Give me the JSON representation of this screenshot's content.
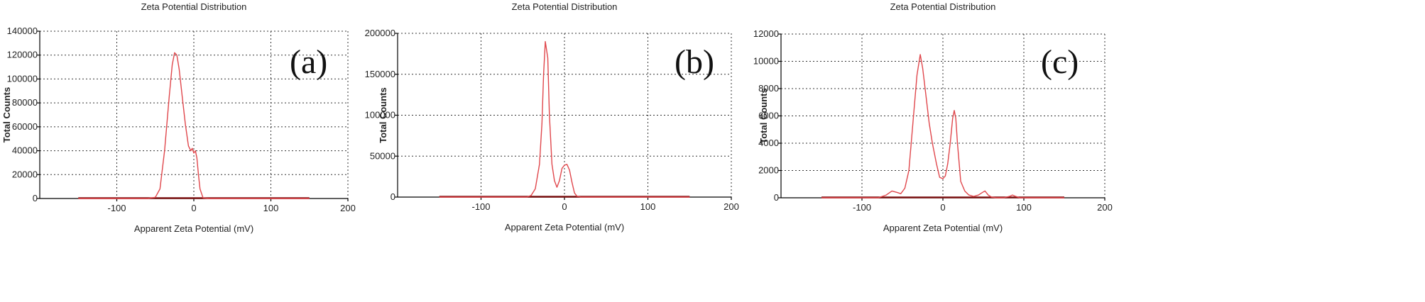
{
  "chart_data": [
    {
      "type": "line",
      "title": "Zeta Potential Distribution",
      "xlabel": "Apparent Zeta Potential (mV)",
      "ylabel": "Total Counts",
      "panel_label": "(a)",
      "xlim": [
        -200,
        200
      ],
      "ylim": [
        0,
        140000
      ],
      "xticks": [
        -100,
        0,
        100,
        200
      ],
      "yticks": [
        0,
        20000,
        40000,
        60000,
        80000,
        100000,
        120000,
        140000
      ],
      "grid": true,
      "series": [
        {
          "color": "#e0474c",
          "x": [
            -150,
            -60,
            -50,
            -44,
            -38,
            -32,
            -28,
            -25,
            -22,
            -19,
            -15,
            -11,
            -7,
            -4,
            -2,
            0,
            2,
            4,
            6,
            8,
            12,
            20,
            150
          ],
          "y": [
            0,
            0,
            1000,
            8000,
            40000,
            85000,
            112000,
            122000,
            120000,
            108000,
            85000,
            62000,
            44000,
            40000,
            42000,
            38000,
            40000,
            34000,
            20000,
            8000,
            500,
            0,
            0
          ]
        }
      ]
    },
    {
      "type": "line",
      "title": "Zeta Potential Distribution",
      "xlabel": "Apparent Zeta Potential (mV)",
      "ylabel": "Total Counts",
      "panel_label": "(b)",
      "xlim": [
        -200,
        200
      ],
      "ylim": [
        0,
        200000
      ],
      "xticks": [
        -100,
        0,
        100,
        200
      ],
      "yticks": [
        0,
        50000,
        100000,
        150000,
        200000
      ],
      "grid": true,
      "series": [
        {
          "color": "#e0474c",
          "x": [
            -150,
            -45,
            -40,
            -35,
            -30,
            -27,
            -25,
            -23,
            -20,
            -18,
            -15,
            -12,
            -9,
            -6,
            -3,
            0,
            3,
            6,
            9,
            12,
            15,
            20,
            150
          ],
          "y": [
            0,
            0,
            2000,
            10000,
            40000,
            90000,
            150000,
            190000,
            170000,
            100000,
            40000,
            20000,
            12000,
            20000,
            35000,
            39000,
            40000,
            33000,
            18000,
            5000,
            1000,
            0,
            0
          ]
        }
      ]
    },
    {
      "type": "line",
      "title": "Zeta Potential Distribution",
      "xlabel": "Apparent Zeta Potential (mV)",
      "ylabel": "Total Counts",
      "panel_label": "(c)",
      "xlim": [
        -200,
        200
      ],
      "ylim": [
        0,
        12000
      ],
      "xticks": [
        -100,
        0,
        100,
        200
      ],
      "yticks": [
        0,
        2000,
        4000,
        6000,
        8000,
        10000,
        12000
      ],
      "grid": true,
      "series": [
        {
          "color": "#e0474c",
          "x": [
            -150,
            -80,
            -70,
            -63,
            -57,
            -52,
            -47,
            -42,
            -37,
            -32,
            -28,
            -25,
            -21,
            -17,
            -13,
            -8,
            -4,
            0,
            3,
            6,
            9,
            12,
            14,
            16,
            18,
            22,
            27,
            32,
            38,
            44,
            49,
            52,
            56,
            60,
            66,
            75,
            82,
            86,
            90,
            95,
            150
          ],
          "y": [
            0,
            0,
            200,
            500,
            400,
            300,
            700,
            2000,
            5500,
            9000,
            10500,
            9500,
            7500,
            5500,
            4000,
            2500,
            1500,
            1400,
            1600,
            2500,
            4000,
            5800,
            6400,
            5800,
            4000,
            1200,
            500,
            200,
            100,
            200,
            400,
            500,
            200,
            50,
            0,
            0,
            100,
            200,
            100,
            0,
            0
          ]
        }
      ]
    }
  ]
}
